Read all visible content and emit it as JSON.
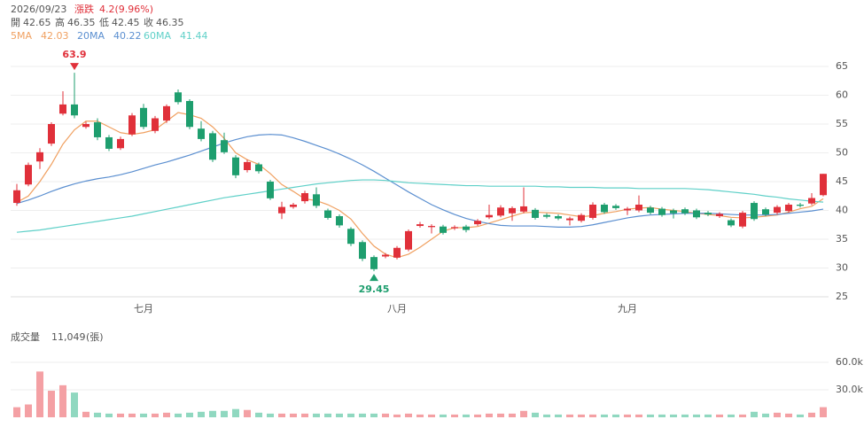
{
  "header": {
    "date": "2026/09/23",
    "change_label": "漲跌",
    "change": "4.2(9.96%)",
    "ohlc_labels": [
      "開",
      "高",
      "低",
      "收"
    ]
  },
  "chart_data": [
    {
      "type": "candlestick",
      "categories": [
        null,
        null,
        null,
        null,
        null,
        null,
        null,
        null,
        null,
        null,
        null,
        "七月",
        null,
        null,
        null,
        null,
        null,
        null,
        null,
        null,
        null,
        null,
        null,
        null,
        null,
        null,
        null,
        null,
        null,
        null,
        null,
        null,
        null,
        "八月",
        null,
        null,
        null,
        null,
        null,
        null,
        null,
        null,
        null,
        null,
        null,
        null,
        null,
        null,
        null,
        null,
        null,
        null,
        null,
        "九月",
        null,
        null,
        null,
        null,
        null,
        null,
        null,
        null,
        null,
        null,
        null,
        null,
        null,
        null,
        null,
        null,
        null
      ],
      "open": [
        41.3,
        44.5,
        48.5,
        51.6,
        56.8,
        58.4,
        54.5,
        55.3,
        52.7,
        50.8,
        53.2,
        57.8,
        53.8,
        55.6,
        60.5,
        59,
        54.2,
        53.4,
        52.2,
        49.2,
        47,
        48,
        45,
        39.5,
        40.6,
        41.6,
        42.8,
        40,
        39,
        36.8,
        34.5,
        31.9,
        32,
        31.8,
        33.2,
        37.3,
        37.1,
        37.2,
        36.9,
        37.2,
        37.6,
        38.8,
        39.1,
        39.5,
        39.8,
        40.1,
        39.2,
        39,
        38.3,
        38.2,
        38.7,
        41,
        40.8,
        40,
        40,
        40.5,
        40.3,
        40,
        40.2,
        40,
        39.6,
        39,
        38.3,
        37.2,
        41.3,
        40.2,
        39.6,
        39.9,
        41,
        41.2,
        42.65
      ],
      "high": [
        44.6,
        48.3,
        50.8,
        55.3,
        60.7,
        63.9,
        55.4,
        56,
        53.1,
        52.8,
        56.9,
        58.5,
        56.4,
        58.4,
        61,
        59.3,
        55.5,
        53.8,
        53.5,
        49.6,
        48.8,
        48.3,
        45.3,
        41.5,
        41.3,
        43.4,
        44,
        40.3,
        39.3,
        37.1,
        34.8,
        32.2,
        32.6,
        33.8,
        36.7,
        38,
        37.6,
        37.5,
        37.4,
        37.5,
        38.5,
        41,
        40.9,
        40.7,
        44,
        40.4,
        39.5,
        39.3,
        38.9,
        39.5,
        41.4,
        41.3,
        41.1,
        40.6,
        42.6,
        40.8,
        40.6,
        40.3,
        40.5,
        40.3,
        39.9,
        39.7,
        38.6,
        39.9,
        41.6,
        40.5,
        40.9,
        41.3,
        41.3,
        43,
        46.35
      ],
      "low": [
        40.8,
        44.2,
        47.2,
        51.2,
        56.5,
        56,
        54.2,
        52.2,
        50.3,
        50.5,
        52.9,
        54.1,
        53.4,
        55.2,
        58.4,
        54.1,
        52,
        48.4,
        49.8,
        45.6,
        46.6,
        46.4,
        41.8,
        38.5,
        40.3,
        41.2,
        40.4,
        38.4,
        37,
        33.8,
        31.2,
        29.45,
        31.7,
        31.5,
        32.9,
        37,
        36,
        35.8,
        36.6,
        36.2,
        37.3,
        38.5,
        38.8,
        38.2,
        39.5,
        38.4,
        38.6,
        38.3,
        37.4,
        37.9,
        38.4,
        39.4,
        40.1,
        39.2,
        39.7,
        39.3,
        38.9,
        38.6,
        39.2,
        38.5,
        39,
        38.7,
        37.1,
        36.9,
        38.2,
        39,
        39.3,
        39.6,
        40.5,
        40.9,
        42.45
      ],
      "close": [
        43.5,
        47.9,
        50.1,
        55,
        58.4,
        56.5,
        55,
        52.7,
        50.7,
        52.4,
        56.5,
        54.5,
        56,
        58.1,
        58.8,
        54.5,
        52.4,
        48.8,
        50.1,
        46.1,
        48.4,
        46.8,
        42.1,
        40.6,
        41,
        43,
        40.8,
        38.7,
        37.4,
        34.2,
        31.6,
        29.8,
        32.3,
        33.5,
        36.4,
        37.6,
        37.3,
        36.1,
        37.1,
        36.6,
        38.2,
        39.2,
        40.5,
        40.4,
        40.7,
        38.7,
        38.9,
        38.6,
        38.6,
        39.2,
        41,
        39.7,
        40.4,
        40.3,
        41,
        39.6,
        39.2,
        39.5,
        39.5,
        38.8,
        39.3,
        39.4,
        37.4,
        39.6,
        38.5,
        39.3,
        40.6,
        41,
        40.8,
        42.15,
        46.35
      ],
      "up_color": "#e0303a",
      "down_color": "#1e9e6e",
      "series": [
        {
          "name": "5MA",
          "color": "#f0a060",
          "values": [
            41.4,
            42.5,
            45,
            48,
            51.5,
            54,
            55.5,
            55.5,
            54.5,
            53.5,
            53.2,
            53.5,
            54,
            55.5,
            57,
            56.6,
            56,
            54.5,
            52.5,
            50,
            48.8,
            48,
            46.4,
            44.5,
            43.3,
            42,
            41.7,
            41,
            40,
            38.5,
            36,
            33.8,
            32.4,
            31.8,
            32.4,
            33.6,
            35,
            36.4,
            37,
            37,
            37.2,
            37.8,
            38.4,
            39,
            39.6,
            39.7,
            39.6,
            39.5,
            39.2,
            38.9,
            39.1,
            39.5,
            39.8,
            40.2,
            40.4,
            40.5,
            40.2,
            40,
            39.8,
            39.5,
            39.3,
            39.1,
            38.8,
            38.7,
            38.8,
            39,
            39.2,
            39.7,
            40.3,
            40.7,
            42.03
          ]
        },
        {
          "name": "20MA",
          "color": "#5b8fd0",
          "values": [
            41.2,
            41.8,
            42.5,
            43.3,
            44,
            44.6,
            45.1,
            45.5,
            45.8,
            46.2,
            46.7,
            47.3,
            47.9,
            48.4,
            49,
            49.6,
            50.3,
            51,
            51.7,
            52.3,
            52.8,
            53.1,
            53.2,
            53.1,
            52.6,
            52,
            51.3,
            50.6,
            49.8,
            48.9,
            47.9,
            46.8,
            45.6,
            44.4,
            43.2,
            42.1,
            41,
            40.1,
            39.3,
            38.6,
            38.1,
            37.7,
            37.4,
            37.3,
            37.3,
            37.3,
            37.2,
            37.1,
            37.1,
            37.2,
            37.5,
            37.9,
            38.3,
            38.7,
            39,
            39.2,
            39.3,
            39.4,
            39.5,
            39.5,
            39.5,
            39.4,
            39.3,
            39.2,
            39.2,
            39.2,
            39.3,
            39.5,
            39.7,
            39.9,
            40.22
          ]
        },
        {
          "name": "60MA",
          "color": "#5fd0c8",
          "values": [
            36.2,
            36.4,
            36.6,
            36.9,
            37.2,
            37.5,
            37.8,
            38.1,
            38.4,
            38.7,
            39,
            39.4,
            39.8,
            40.2,
            40.6,
            41,
            41.4,
            41.8,
            42.2,
            42.5,
            42.8,
            43.1,
            43.4,
            43.7,
            44,
            44.3,
            44.6,
            44.8,
            45,
            45.2,
            45.3,
            45.3,
            45.2,
            45,
            44.8,
            44.7,
            44.6,
            44.5,
            44.4,
            44.3,
            44.3,
            44.2,
            44.2,
            44.2,
            44.2,
            44.2,
            44.1,
            44.1,
            44,
            44,
            44,
            43.9,
            43.9,
            43.9,
            43.8,
            43.8,
            43.8,
            43.8,
            43.8,
            43.7,
            43.6,
            43.4,
            43.2,
            43,
            42.8,
            42.5,
            42.3,
            42,
            41.8,
            41.6,
            41.44
          ]
        }
      ],
      "ylim": [
        25,
        65
      ],
      "yticks": [
        25,
        30,
        35,
        40,
        45,
        50,
        55,
        60,
        65
      ],
      "grid": true
    },
    {
      "type": "bar",
      "title": "成交量",
      "latest_label": "11,049",
      "unit": "(張)",
      "values": [
        11000,
        14000,
        50000,
        29000,
        35000,
        27000,
        6000,
        5000,
        4000,
        4000,
        4000,
        4000,
        4000,
        5000,
        4000,
        5000,
        6000,
        7000,
        7000,
        9000,
        8000,
        5000,
        4000,
        4000,
        4000,
        4000,
        4000,
        4000,
        4000,
        4000,
        4000,
        4000,
        4000,
        3000,
        4000,
        3000,
        3000,
        3000,
        3000,
        3000,
        3000,
        4000,
        4000,
        4000,
        7000,
        5000,
        3000,
        3000,
        3000,
        3000,
        3000,
        3000,
        3000,
        3000,
        3000,
        3000,
        3000,
        3000,
        3000,
        3000,
        3000,
        3000,
        3000,
        3000,
        6000,
        4000,
        5000,
        4000,
        3000,
        5000,
        11049
      ],
      "up_color": "#f4a0a4",
      "down_color": "#90d8c0",
      "ylim": [
        0,
        60000
      ],
      "yticks": [
        {
          "value": 30000,
          "label": "30.0k"
        },
        {
          "value": 60000,
          "label": "60.0k"
        }
      ],
      "grid": true
    }
  ]
}
